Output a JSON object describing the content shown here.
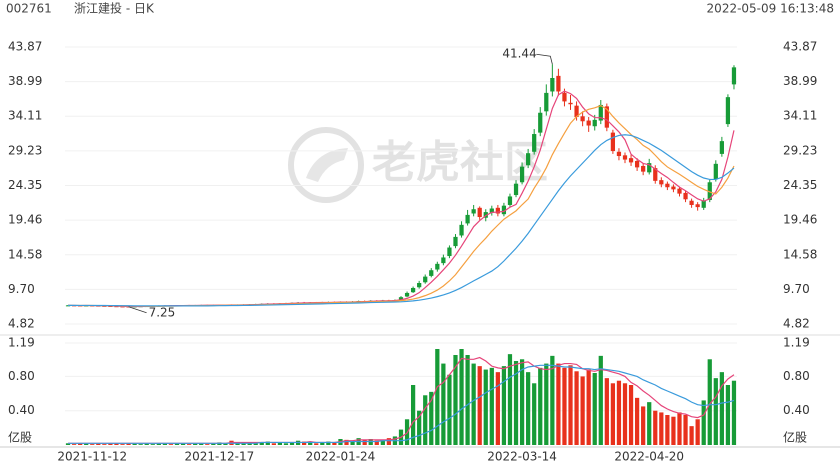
{
  "chart_data": {
    "type": "candlestick",
    "code": "002761",
    "title": "浙江建投 - 日K",
    "timestamp": "2022-05-09 16:13:48",
    "watermark": "老虎社区",
    "categories": [
      null,
      null,
      null,
      null,
      "2021-11-12",
      null,
      null,
      null,
      null,
      null,
      null,
      null,
      null,
      null,
      null,
      null,
      null,
      null,
      null,
      null,
      null,
      null,
      null,
      null,
      null,
      "2021-12-17",
      null,
      null,
      null,
      null,
      null,
      null,
      null,
      null,
      null,
      null,
      null,
      null,
      null,
      null,
      null,
      null,
      null,
      null,
      null,
      "2022-01-24",
      null,
      null,
      null,
      null,
      null,
      null,
      null,
      null,
      null,
      null,
      null,
      null,
      null,
      null,
      null,
      null,
      null,
      null,
      null,
      null,
      null,
      null,
      null,
      null,
      null,
      null,
      null,
      null,
      null,
      "2022-03-14",
      null,
      null,
      null,
      null,
      null,
      null,
      null,
      null,
      null,
      null,
      null,
      null,
      null,
      null,
      null,
      null,
      null,
      null,
      null,
      null,
      "2022-04-20",
      null,
      null,
      null,
      null,
      null,
      null,
      null,
      null,
      null,
      null,
      null,
      null,
      null,
      null
    ],
    "open": [
      7.42,
      7.45,
      7.43,
      7.4,
      7.43,
      7.41,
      7.38,
      7.36,
      7.33,
      7.3,
      7.29,
      7.27,
      7.3,
      7.33,
      7.35,
      7.38,
      7.4,
      7.43,
      7.41,
      7.43,
      7.46,
      7.44,
      7.46,
      7.49,
      7.47,
      7.49,
      7.5,
      7.53,
      7.51,
      7.53,
      7.55,
      7.58,
      7.62,
      7.66,
      7.71,
      7.68,
      7.72,
      7.75,
      7.8,
      7.86,
      7.82,
      7.87,
      7.84,
      7.88,
      7.93,
      7.9,
      7.96,
      7.92,
      7.98,
      8.06,
      8.02,
      8.11,
      8.08,
      8.16,
      8.12,
      8.2,
      8.7,
      9.3,
      10.0,
      10.7,
      11.6,
      12.5,
      13.4,
      14.4,
      15.8,
      17.3,
      19.0,
      20.4,
      21.2,
      19.8,
      20.5,
      21.2,
      20.3,
      21.6,
      23.0,
      24.8,
      27.2,
      29.1,
      31.8,
      34.8,
      37.6,
      39.8,
      37.4,
      36.0,
      35.6,
      34.1,
      33.5,
      32.7,
      33.5,
      35.5,
      31.8,
      29.1,
      28.6,
      28.2,
      27.8,
      27.1,
      26.2,
      26.8,
      25.1,
      24.6,
      24.2,
      23.9,
      23.3,
      22.2,
      21.7,
      21.2,
      22.3,
      25.2,
      28.8,
      33.0,
      38.6
    ],
    "high": [
      7.5,
      7.5,
      7.48,
      7.48,
      7.48,
      7.46,
      7.43,
      7.41,
      7.38,
      7.35,
      7.34,
      7.35,
      7.38,
      7.4,
      7.43,
      7.45,
      7.47,
      7.48,
      7.48,
      7.5,
      7.51,
      7.51,
      7.53,
      7.54,
      7.54,
      7.55,
      7.57,
      7.58,
      7.58,
      7.6,
      7.63,
      7.67,
      7.72,
      7.76,
      7.76,
      7.78,
      7.81,
      7.86,
      7.92,
      7.93,
      7.92,
      7.93,
      7.94,
      7.98,
      7.99,
      8.01,
      8.02,
      8.05,
      8.12,
      8.13,
      8.17,
      8.18,
      8.22,
      8.23,
      8.28,
      8.75,
      9.4,
      10.1,
      10.9,
      11.8,
      12.7,
      13.6,
      14.6,
      15.9,
      17.5,
      19.3,
      20.9,
      21.6,
      21.4,
      21.0,
      21.5,
      21.6,
      21.9,
      23.2,
      25.1,
      27.6,
      29.5,
      32.3,
      35.4,
      38.6,
      41.44,
      40.8,
      38.0,
      37.1,
      36.2,
      34.8,
      34.0,
      34.3,
      36.4,
      35.9,
      32.2,
      29.6,
      29.0,
      28.7,
      28.2,
      27.5,
      28.1,
      27.2,
      25.5,
      24.9,
      24.5,
      24.2,
      23.6,
      22.5,
      22.0,
      22.6,
      25.2,
      27.9,
      31.2,
      37.2,
      41.3
    ],
    "low": [
      7.37,
      7.37,
      7.35,
      7.35,
      7.36,
      7.33,
      7.31,
      7.28,
      7.26,
      7.26,
      7.25,
      7.26,
      7.27,
      7.29,
      7.31,
      7.34,
      7.36,
      7.37,
      7.37,
      7.39,
      7.4,
      7.4,
      7.42,
      7.43,
      7.43,
      7.44,
      7.46,
      7.47,
      7.47,
      7.49,
      7.51,
      7.54,
      7.58,
      7.61,
      7.63,
      7.63,
      7.67,
      7.7,
      7.75,
      7.77,
      7.77,
      7.79,
      7.79,
      7.83,
      7.85,
      7.85,
      7.87,
      7.87,
      7.93,
      7.96,
      7.97,
      8.02,
      8.03,
      8.06,
      8.07,
      8.15,
      8.6,
      9.2,
      9.8,
      10.5,
      11.4,
      12.2,
      13.1,
      14.1,
      15.5,
      17.0,
      18.7,
      20.0,
      19.5,
      19.3,
      20.1,
      20.0,
      20.0,
      21.3,
      22.7,
      24.5,
      26.8,
      28.7,
      31.3,
      34.2,
      36.9,
      37.0,
      35.5,
      35.0,
      33.5,
      32.7,
      31.9,
      32.1,
      33.0,
      32.0,
      28.8,
      27.9,
      27.5,
      27.1,
      26.4,
      25.8,
      25.9,
      24.6,
      24.1,
      23.7,
      23.4,
      22.8,
      22.0,
      21.2,
      20.8,
      20.9,
      22.0,
      24.9,
      28.4,
      32.6,
      37.9
    ],
    "close": [
      7.45,
      7.42,
      7.4,
      7.43,
      7.41,
      7.38,
      7.36,
      7.33,
      7.3,
      7.28,
      7.27,
      7.3,
      7.33,
      7.35,
      7.38,
      7.4,
      7.42,
      7.41,
      7.43,
      7.45,
      7.44,
      7.46,
      7.48,
      7.47,
      7.49,
      7.5,
      7.52,
      7.51,
      7.53,
      7.55,
      7.58,
      7.62,
      7.66,
      7.7,
      7.68,
      7.72,
      7.75,
      7.8,
      7.85,
      7.82,
      7.86,
      7.84,
      7.88,
      7.92,
      7.9,
      7.95,
      7.92,
      7.98,
      8.05,
      8.02,
      8.1,
      8.08,
      8.15,
      8.12,
      8.2,
      8.6,
      9.2,
      9.9,
      10.6,
      11.5,
      12.4,
      13.3,
      14.2,
      15.6,
      17.1,
      18.8,
      20.2,
      21.0,
      19.9,
      20.6,
      21.1,
      20.4,
      21.5,
      22.8,
      24.6,
      27.0,
      28.9,
      31.6,
      34.6,
      37.4,
      39.5,
      37.6,
      36.2,
      35.8,
      34.0,
      33.4,
      32.8,
      33.6,
      35.7,
      32.5,
      29.2,
      28.5,
      28.0,
      27.6,
      26.9,
      26.3,
      27.5,
      25.0,
      24.5,
      24.1,
      23.8,
      23.2,
      22.4,
      21.6,
      21.3,
      22.2,
      24.8,
      27.4,
      30.6,
      36.8,
      41.0
    ],
    "up_color": "#179b37",
    "down_color": "#e8311c",
    "ylim": [
      4.82,
      43.87
    ],
    "yticks": [
      4.82,
      {
        "value": 9.7,
        "label": "9.70"
      },
      14.58,
      19.46,
      24.35,
      29.23,
      34.11,
      38.99,
      43.87
    ],
    "grid": true,
    "ma": [
      {
        "color": "#e6457a",
        "values": [
          7.45,
          7.44,
          7.42,
          7.43,
          7.42,
          7.41,
          7.4,
          7.37,
          7.34,
          7.31,
          7.29,
          7.28,
          7.29,
          7.31,
          7.33,
          7.35,
          7.38,
          7.39,
          7.41,
          7.42,
          7.43,
          7.44,
          7.45,
          7.46,
          7.47,
          7.48,
          7.49,
          7.5,
          7.51,
          7.52,
          7.54,
          7.56,
          7.59,
          7.62,
          7.65,
          7.68,
          7.7,
          7.73,
          7.76,
          7.79,
          7.82,
          7.83,
          7.85,
          7.86,
          7.88,
          7.9,
          7.91,
          7.93,
          7.96,
          7.98,
          8.02,
          8.05,
          8.08,
          8.09,
          8.13,
          8.23,
          8.43,
          8.76,
          9.24,
          9.96,
          10.72,
          11.54,
          12.46,
          13.4,
          14.52,
          15.8,
          17.16,
          18.54,
          19.4,
          20.1,
          20.56,
          20.6,
          20.7,
          21.28,
          21.68,
          23.26,
          24.96,
          26.98,
          29.34,
          32.3,
          35.2,
          37.14,
          37.64,
          37.3,
          36.62,
          35.4,
          34.44,
          33.92,
          33.9,
          33.6,
          32.76,
          31.9,
          30.78,
          28.76,
          28.04,
          27.46,
          27.26,
          26.66,
          26.04,
          25.48,
          24.78,
          24.12,
          23.6,
          23.02,
          22.46,
          22.14,
          22.46,
          23.46,
          25.2,
          28.36,
          32.12
        ]
      },
      {
        "color": "#f5a040",
        "values": [
          7.45,
          7.44,
          7.43,
          7.43,
          7.43,
          7.42,
          7.41,
          7.4,
          7.39,
          7.37,
          7.35,
          7.34,
          7.33,
          7.32,
          7.32,
          7.32,
          7.33,
          7.34,
          7.35,
          7.37,
          7.39,
          7.41,
          7.42,
          7.43,
          7.44,
          7.45,
          7.46,
          7.47,
          7.48,
          7.49,
          7.5,
          7.52,
          7.54,
          7.56,
          7.58,
          7.6,
          7.63,
          7.65,
          7.68,
          7.7,
          7.73,
          7.76,
          7.78,
          7.81,
          7.83,
          7.85,
          7.87,
          7.89,
          7.91,
          7.93,
          7.95,
          7.98,
          8.0,
          8.03,
          8.05,
          8.11,
          8.2,
          8.34,
          8.54,
          8.82,
          9.16,
          9.6,
          10.18,
          10.9,
          11.76,
          12.86,
          13.95,
          15.06,
          16.03,
          16.92,
          17.91,
          18.76,
          19.59,
          20.18,
          20.77,
          21.63,
          22.44,
          23.97,
          25.31,
          26.84,
          28.69,
          30.26,
          31.72,
          33.13,
          34.06,
          34.7,
          35.09,
          35.29,
          35.6,
          35.1,
          34.08,
          33.17,
          32.35,
          31.53,
          30.82,
          30.0,
          29.47,
          28.61,
          27.7,
          26.96,
          26.44,
          25.93,
          25.37,
          24.78,
          24.22,
          23.81,
          23.44,
          23.15,
          24.1,
          25.4,
          27.1
        ]
      },
      {
        "color": "#3a9bdc",
        "values": [
          7.45,
          7.45,
          7.44,
          7.44,
          7.44,
          7.43,
          7.43,
          7.42,
          7.41,
          7.4,
          7.39,
          7.38,
          7.38,
          7.37,
          7.37,
          7.37,
          7.37,
          7.37,
          7.37,
          7.37,
          7.37,
          7.37,
          7.38,
          7.38,
          7.39,
          7.4,
          7.41,
          7.42,
          7.43,
          7.44,
          7.45,
          7.46,
          7.48,
          7.49,
          7.51,
          7.53,
          7.54,
          7.56,
          7.58,
          7.6,
          7.62,
          7.64,
          7.66,
          7.68,
          7.7,
          7.72,
          7.74,
          7.76,
          7.78,
          7.81,
          7.84,
          7.86,
          7.88,
          7.9,
          7.92,
          7.95,
          8.0,
          8.08,
          8.18,
          8.32,
          8.48,
          8.68,
          8.92,
          9.2,
          9.55,
          9.96,
          10.42,
          10.9,
          11.35,
          11.82,
          12.28,
          12.9,
          13.7,
          14.6,
          15.5,
          16.5,
          17.6,
          18.8,
          20.0,
          21.2,
          22.4,
          23.6,
          24.7,
          25.7,
          26.6,
          27.5,
          28.4,
          29.3,
          30.1,
          30.7,
          31.1,
          31.4,
          31.5,
          31.4,
          31.1,
          30.7,
          30.3,
          29.8,
          29.3,
          28.7,
          28.1,
          27.5,
          26.9,
          26.3,
          25.8,
          25.4,
          25.2,
          25.2,
          25.5,
          26.1,
          26.8
        ]
      }
    ],
    "volume": {
      "unit": "亿股",
      "ylim": [
        0,
        1.19
      ],
      "yticks": [
        {
          "value": 0.4,
          "label": "0.40"
        },
        {
          "value": 0.8,
          "label": "0.80"
        },
        1.19
      ],
      "values": [
        0.02,
        0.01,
        0.02,
        0.02,
        0.01,
        0.02,
        0.01,
        0.02,
        0.02,
        0.01,
        0.02,
        0.02,
        0.01,
        0.02,
        0.01,
        0.02,
        0.02,
        0.01,
        0.02,
        0.02,
        0.01,
        0.02,
        0.02,
        0.01,
        0.02,
        0.03,
        0.02,
        0.05,
        0.03,
        0.02,
        0.03,
        0.02,
        0.03,
        0.04,
        0.02,
        0.03,
        0.02,
        0.03,
        0.05,
        0.04,
        0.03,
        0.02,
        0.03,
        0.04,
        0.03,
        0.07,
        0.06,
        0.05,
        0.08,
        0.06,
        0.07,
        0.05,
        0.06,
        0.08,
        0.1,
        0.18,
        0.3,
        0.7,
        0.4,
        0.58,
        0.62,
        1.12,
        0.95,
        0.82,
        1.05,
        1.12,
        1.05,
        0.95,
        0.92,
        0.88,
        0.9,
        0.85,
        0.92,
        1.06,
        0.98,
        1.0,
        0.85,
        0.72,
        0.9,
        0.95,
        1.04,
        0.95,
        0.9,
        0.93,
        0.86,
        0.8,
        0.88,
        0.84,
        1.04,
        0.78,
        0.72,
        0.75,
        0.72,
        0.7,
        0.55,
        0.45,
        0.5,
        0.4,
        0.38,
        0.35,
        0.33,
        0.38,
        0.35,
        0.22,
        0.3,
        0.52,
        1.0,
        0.78,
        0.85,
        0.7,
        0.75
      ],
      "ma": [
        {
          "color": "#e6457a",
          "values": [
            0.02,
            0.02,
            0.02,
            0.02,
            0.02,
            0.02,
            0.02,
            0.02,
            0.02,
            0.02,
            0.02,
            0.02,
            0.02,
            0.02,
            0.02,
            0.02,
            0.02,
            0.02,
            0.02,
            0.02,
            0.02,
            0.02,
            0.02,
            0.02,
            0.02,
            0.02,
            0.02,
            0.03,
            0.03,
            0.03,
            0.03,
            0.03,
            0.03,
            0.03,
            0.03,
            0.03,
            0.03,
            0.03,
            0.03,
            0.03,
            0.04,
            0.03,
            0.03,
            0.03,
            0.03,
            0.04,
            0.05,
            0.05,
            0.06,
            0.06,
            0.06,
            0.06,
            0.06,
            0.06,
            0.07,
            0.09,
            0.14,
            0.27,
            0.33,
            0.43,
            0.52,
            0.68,
            0.73,
            0.82,
            0.91,
            1.01,
            1.0,
            1.0,
            1.02,
            0.98,
            0.92,
            0.9,
            0.89,
            0.92,
            0.94,
            0.96,
            0.97,
            0.92,
            0.89,
            0.88,
            0.89,
            0.93,
            0.95,
            0.95,
            0.94,
            0.89,
            0.87,
            0.86,
            0.88,
            0.87,
            0.85,
            0.83,
            0.8,
            0.73,
            0.69,
            0.63,
            0.58,
            0.52,
            0.46,
            0.42,
            0.39,
            0.37,
            0.36,
            0.33,
            0.32,
            0.35,
            0.48,
            0.56,
            0.69,
            0.77,
            0.82
          ]
        },
        {
          "color": "#3a9bdc",
          "values": [
            0.02,
            0.02,
            0.02,
            0.02,
            0.02,
            0.02,
            0.02,
            0.02,
            0.02,
            0.02,
            0.02,
            0.02,
            0.02,
            0.02,
            0.02,
            0.02,
            0.02,
            0.02,
            0.02,
            0.02,
            0.02,
            0.02,
            0.02,
            0.02,
            0.02,
            0.02,
            0.02,
            0.02,
            0.02,
            0.02,
            0.02,
            0.02,
            0.03,
            0.03,
            0.03,
            0.03,
            0.03,
            0.03,
            0.03,
            0.03,
            0.03,
            0.03,
            0.03,
            0.03,
            0.03,
            0.03,
            0.04,
            0.04,
            0.04,
            0.04,
            0.04,
            0.04,
            0.05,
            0.05,
            0.05,
            0.05,
            0.06,
            0.09,
            0.11,
            0.14,
            0.17,
            0.22,
            0.27,
            0.31,
            0.36,
            0.42,
            0.47,
            0.52,
            0.56,
            0.61,
            0.65,
            0.69,
            0.74,
            0.79,
            0.83,
            0.88,
            0.91,
            0.92,
            0.93,
            0.93,
            0.93,
            0.92,
            0.91,
            0.91,
            0.9,
            0.89,
            0.89,
            0.88,
            0.89,
            0.88,
            0.87,
            0.86,
            0.84,
            0.82,
            0.8,
            0.76,
            0.73,
            0.7,
            0.66,
            0.63,
            0.6,
            0.57,
            0.54,
            0.5,
            0.47,
            0.46,
            0.47,
            0.47,
            0.49,
            0.5,
            0.52
          ]
        }
      ]
    }
  }
}
